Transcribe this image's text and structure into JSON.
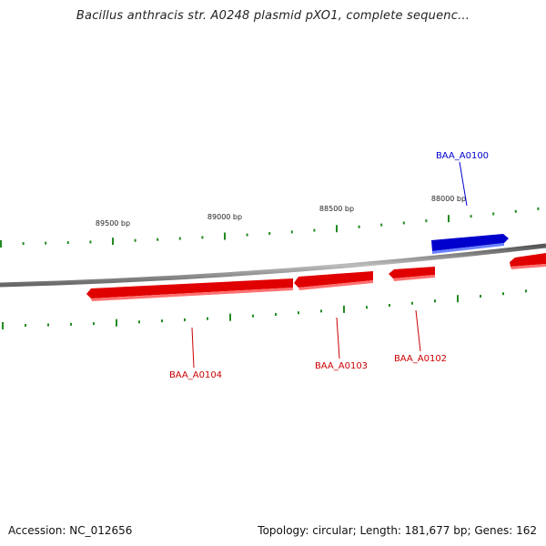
{
  "title": "Bacillus anthracis str. A0248 plasmid pXO1, complete sequenc...",
  "footer": {
    "accession": "Accession: NC_012656",
    "summary": "Topology: circular; Length: 181,677 bp; Genes: 162"
  },
  "colors": {
    "forward_gene": "#0000cc",
    "reverse_gene": "#e00000",
    "tick": "#228b22",
    "backbone": "#888888"
  },
  "scale_labels": [
    "89500 bp",
    "89000 bp",
    "88500 bp",
    "88000 bp"
  ],
  "genes": [
    {
      "name": "BAA_A0100",
      "strand": "forward"
    },
    {
      "name": "BAA_A0102",
      "strand": "reverse"
    },
    {
      "name": "BAA_A0103",
      "strand": "reverse"
    },
    {
      "name": "BAA_A0104",
      "strand": "reverse"
    }
  ]
}
